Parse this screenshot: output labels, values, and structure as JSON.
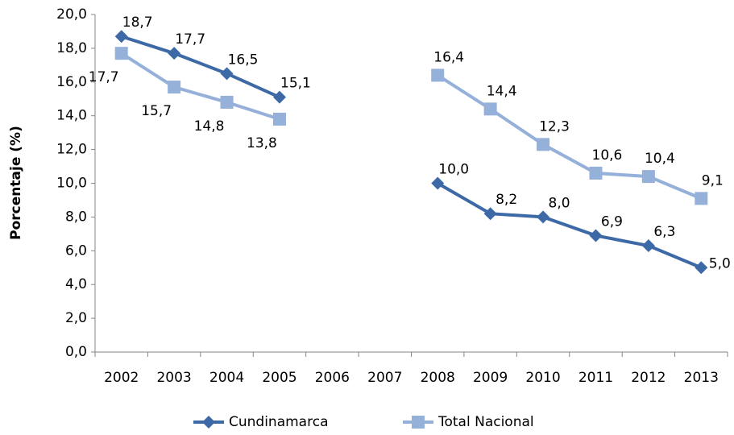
{
  "chart_data": {
    "type": "line",
    "y_label": "Porcentaje (%)",
    "categories": [
      "2002",
      "2003",
      "2004",
      "2005",
      "2006",
      "2007",
      "2008",
      "2009",
      "2010",
      "2011",
      "2012",
      "2013"
    ],
    "series": [
      {
        "name": "Cundinamarca",
        "color": "#3d6aa6",
        "marker": "diamond",
        "values": [
          18.7,
          17.7,
          16.5,
          15.1,
          null,
          null,
          10.0,
          8.2,
          8.0,
          6.9,
          6.3,
          5.0
        ],
        "value_labels": [
          "18,7",
          "17,7",
          "16,5",
          "15,1",
          null,
          null,
          "10,0",
          "8,2",
          "8,0",
          "6,9",
          "6,3",
          "5,0"
        ]
      },
      {
        "name": "Total Nacional",
        "color": "#95b0d9",
        "marker": "square",
        "values": [
          17.7,
          15.7,
          14.8,
          13.8,
          null,
          null,
          16.4,
          14.4,
          12.3,
          10.6,
          10.4,
          9.1
        ],
        "value_labels": [
          "17,7",
          "15,7",
          "14,8",
          "13,8",
          null,
          null,
          "16,4",
          "14,4",
          "12,3",
          "10,6",
          "10,4",
          "9,1"
        ]
      }
    ],
    "ylim": [
      0,
      20
    ],
    "yticks": [
      {
        "value": 0,
        "label": "0,0"
      },
      {
        "value": 2,
        "label": "2,0"
      },
      {
        "value": 4,
        "label": "4,0"
      },
      {
        "value": 6,
        "label": "6,0"
      },
      {
        "value": 8,
        "label": "8,0"
      },
      {
        "value": 10,
        "label": "10,0"
      },
      {
        "value": 12,
        "label": "12,0"
      },
      {
        "value": 14,
        "label": "14,0"
      },
      {
        "value": 16,
        "label": "16,0"
      },
      {
        "value": 18,
        "label": "18,0"
      },
      {
        "value": 20,
        "label": "20,0"
      }
    ],
    "legend": "bottom",
    "grid": false
  }
}
